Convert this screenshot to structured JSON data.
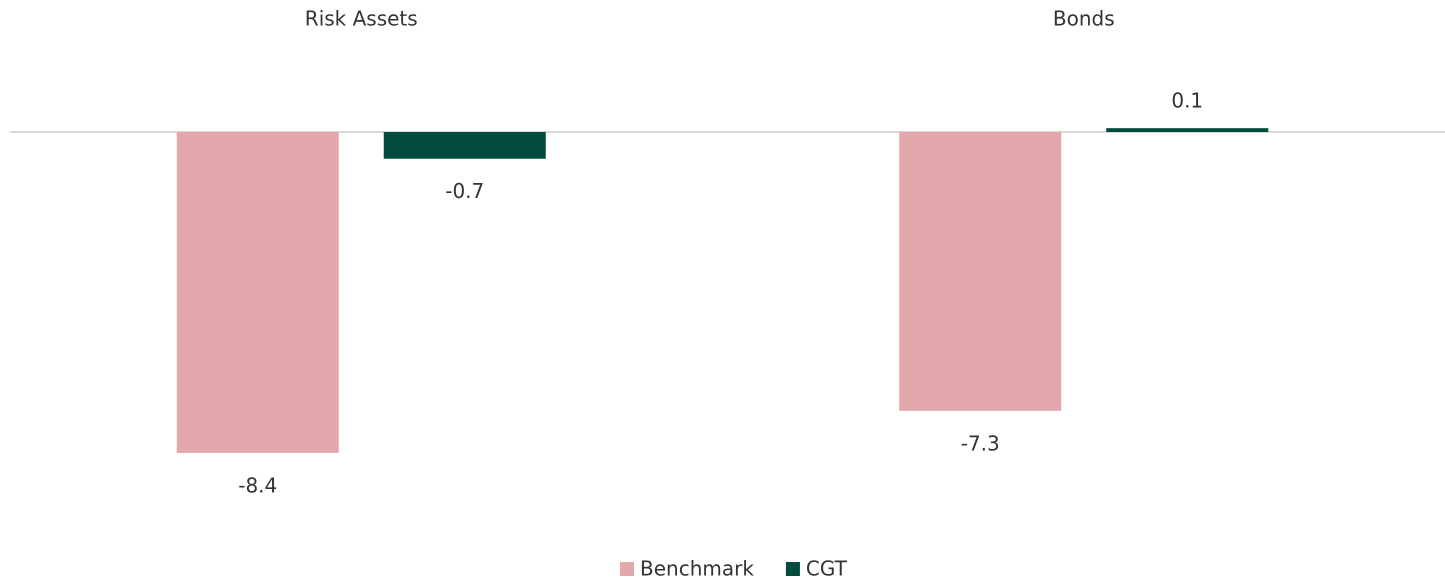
{
  "chart_data": {
    "type": "bar",
    "categories": [
      "Risk Assets",
      "Bonds"
    ],
    "series": [
      {
        "name": "Benchmark",
        "color": "#e3a8ac",
        "values": [
          -8.4,
          -7.3
        ]
      },
      {
        "name": "CGT",
        "color": "#004b3e",
        "values": [
          -0.7,
          0.1
        ]
      }
    ]
  }
}
